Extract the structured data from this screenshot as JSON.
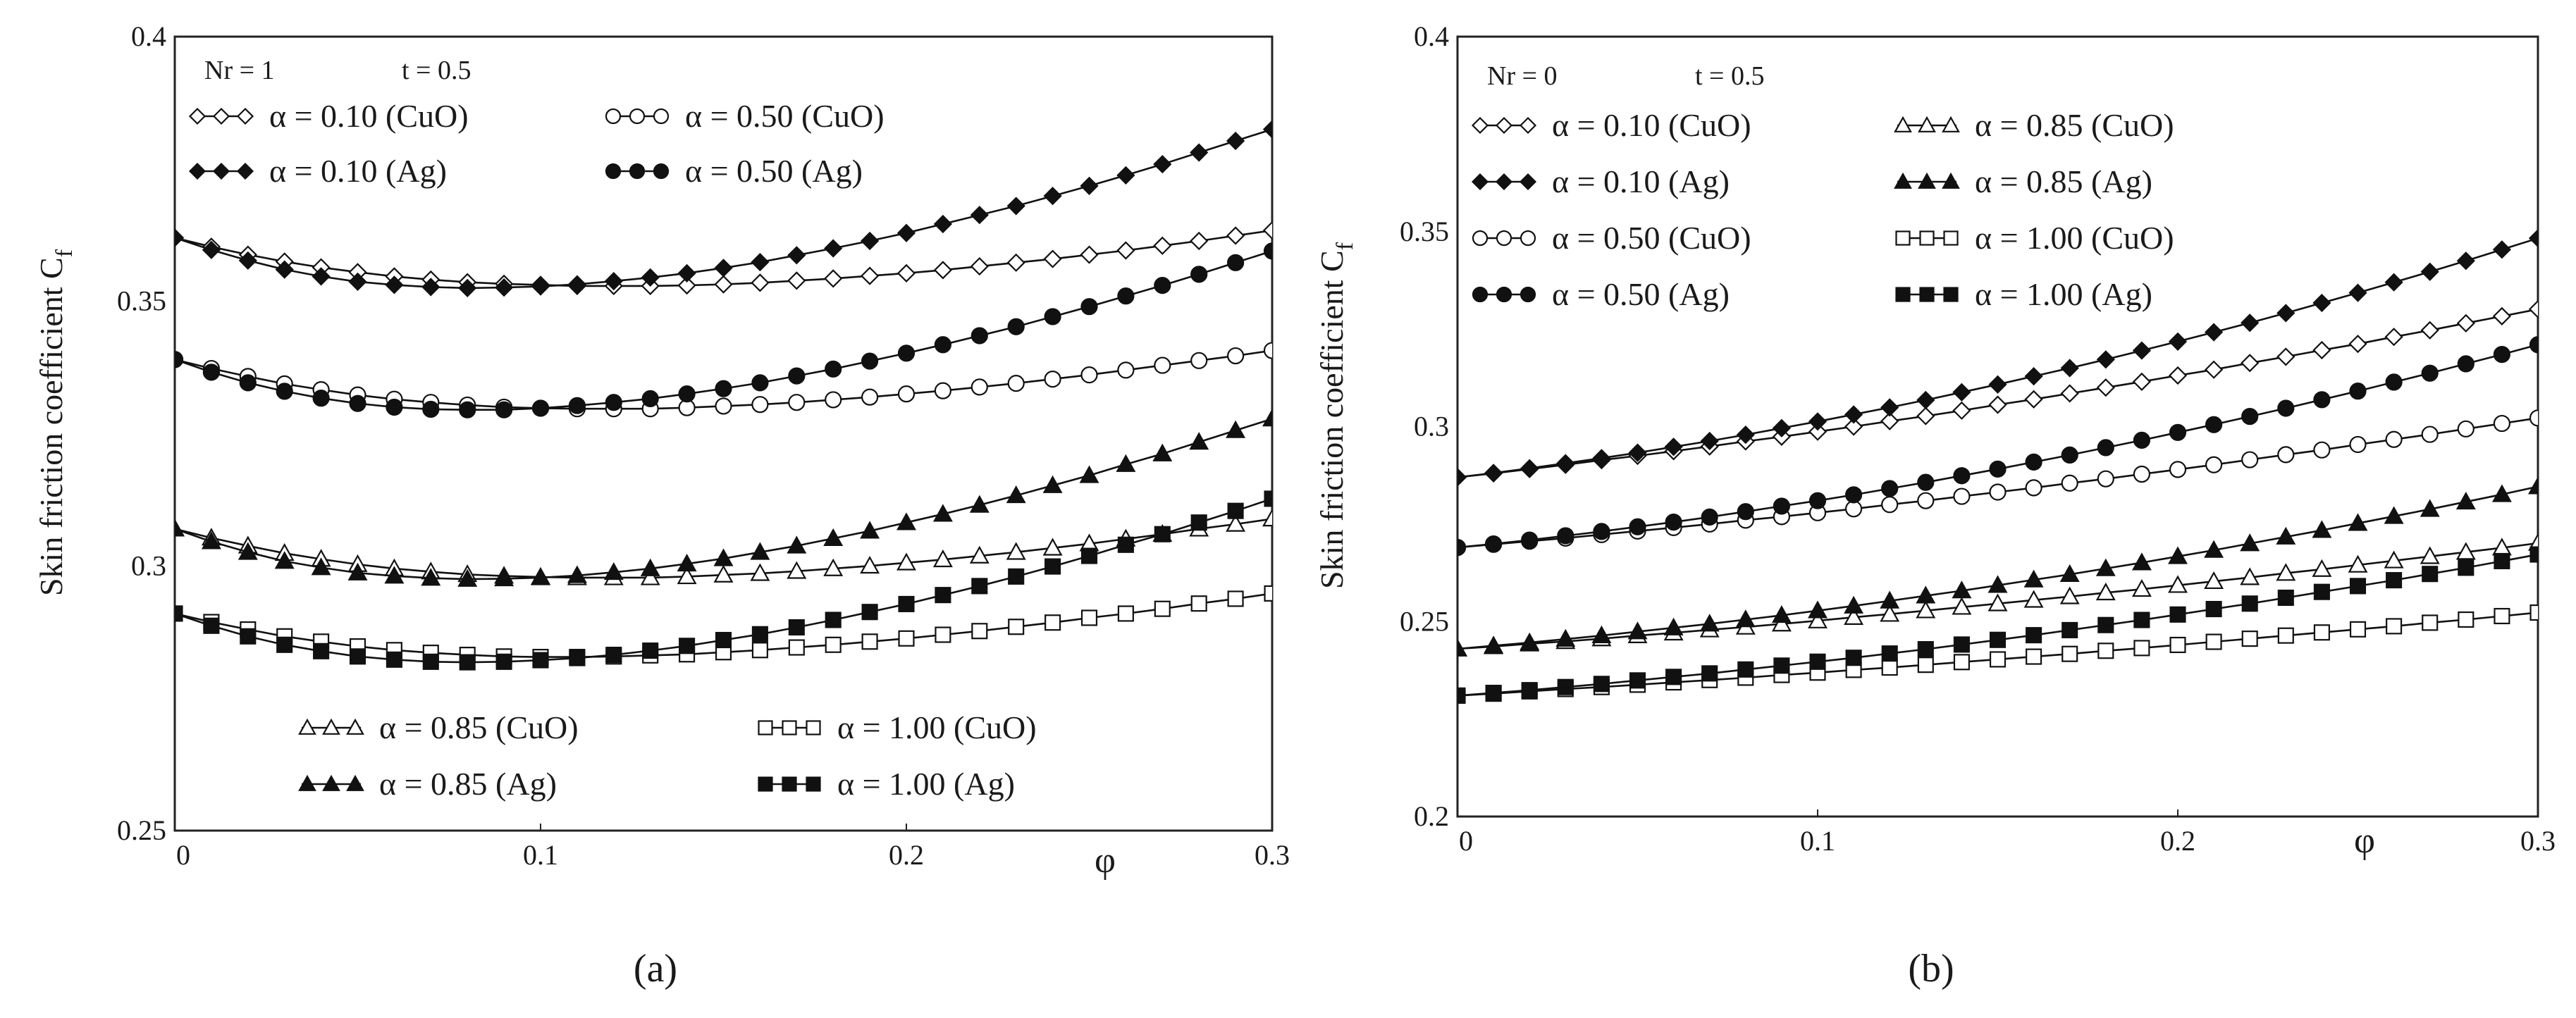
{
  "figure": {
    "panels": [
      "(a)",
      "(b)"
    ]
  },
  "chart_data": [
    {
      "type": "line",
      "caption": "(a)",
      "header": {
        "nr": "Nr = 1",
        "t": "t = 0.5"
      },
      "xlabel": "φ",
      "ylabel": "Skin friction coefficient C",
      "ylabel_sub": "f",
      "xlim": [
        0,
        0.3
      ],
      "ylim": [
        0.25,
        0.4
      ],
      "xticks": [
        "0",
        "0.1",
        "0.2",
        "0.3"
      ],
      "yticks": [
        "0.25",
        "0.3",
        "0.35",
        "0.4"
      ],
      "x": [
        0,
        0.01,
        0.02,
        0.03,
        0.04,
        0.05,
        0.06,
        0.07,
        0.08,
        0.09,
        0.1,
        0.11,
        0.12,
        0.13,
        0.14,
        0.15,
        0.16,
        0.17,
        0.18,
        0.19,
        0.2,
        0.21,
        0.22,
        0.23,
        0.24,
        0.25,
        0.26,
        0.27,
        0.28,
        0.29,
        0.3
      ],
      "series": [
        {
          "name": "α = 0.10 (CuO)",
          "marker": "diamond-open",
          "values": [
            0.362,
            0.3603,
            0.3588,
            0.3575,
            0.3564,
            0.3555,
            0.3547,
            0.3541,
            0.3536,
            0.3533,
            0.3531,
            0.3529,
            0.3529,
            0.3529,
            0.353,
            0.3532,
            0.3535,
            0.3539,
            0.3543,
            0.3548,
            0.3553,
            0.3559,
            0.3566,
            0.3573,
            0.358,
            0.3588,
            0.3596,
            0.3605,
            0.3614,
            0.3624,
            0.3634
          ]
        },
        {
          "name": "α = 0.10 (Ag)",
          "marker": "diamond-filled",
          "values": [
            0.362,
            0.3597,
            0.3577,
            0.356,
            0.3547,
            0.3537,
            0.3531,
            0.3527,
            0.3525,
            0.3526,
            0.3528,
            0.3532,
            0.3538,
            0.3545,
            0.3553,
            0.3563,
            0.3574,
            0.3587,
            0.36,
            0.3614,
            0.3629,
            0.3646,
            0.3663,
            0.368,
            0.3699,
            0.3718,
            0.3738,
            0.3759,
            0.3781,
            0.3803,
            0.3825
          ]
        },
        {
          "name": "α = 0.50 (CuO)",
          "marker": "circle-open",
          "values": [
            0.339,
            0.3373,
            0.3358,
            0.3344,
            0.3333,
            0.3323,
            0.3315,
            0.3309,
            0.3304,
            0.33,
            0.3298,
            0.3297,
            0.3297,
            0.3297,
            0.3299,
            0.3302,
            0.3305,
            0.3309,
            0.3314,
            0.3319,
            0.3325,
            0.3331,
            0.3338,
            0.3345,
            0.3353,
            0.3361,
            0.337,
            0.3379,
            0.3388,
            0.3397,
            0.3407
          ]
        },
        {
          "name": "α = 0.50 (Ag)",
          "marker": "circle-filled",
          "values": [
            0.339,
            0.3366,
            0.3346,
            0.333,
            0.3317,
            0.3307,
            0.33,
            0.3296,
            0.3295,
            0.3295,
            0.3298,
            0.3303,
            0.3309,
            0.3316,
            0.3325,
            0.3335,
            0.3346,
            0.3359,
            0.3372,
            0.3387,
            0.3402,
            0.3418,
            0.3435,
            0.3452,
            0.3471,
            0.349,
            0.351,
            0.353,
            0.3551,
            0.3573,
            0.3595
          ]
        },
        {
          "name": "α = 0.85 (CuO)",
          "marker": "triangle-open",
          "values": [
            0.307,
            0.3053,
            0.3038,
            0.3024,
            0.3013,
            0.3003,
            0.2995,
            0.2989,
            0.2984,
            0.2981,
            0.2979,
            0.2978,
            0.2978,
            0.2978,
            0.298,
            0.2983,
            0.2986,
            0.299,
            0.2995,
            0.3,
            0.3006,
            0.3012,
            0.3019,
            0.3026,
            0.3034,
            0.3042,
            0.3051,
            0.306,
            0.307,
            0.3079,
            0.3089
          ]
        },
        {
          "name": "α = 0.85 (Ag)",
          "marker": "triangle-filled",
          "values": [
            0.307,
            0.3046,
            0.3026,
            0.3009,
            0.2997,
            0.2987,
            0.2981,
            0.2977,
            0.2975,
            0.2976,
            0.2978,
            0.2982,
            0.2988,
            0.2995,
            0.3004,
            0.3014,
            0.3026,
            0.3038,
            0.3052,
            0.3066,
            0.3082,
            0.3098,
            0.3115,
            0.3133,
            0.3152,
            0.3171,
            0.3192,
            0.3212,
            0.3234,
            0.3256,
            0.3278
          ]
        },
        {
          "name": "α = 1.00 (CuO)",
          "marker": "square-open",
          "values": [
            0.291,
            0.2894,
            0.288,
            0.2867,
            0.2857,
            0.2848,
            0.2841,
            0.2836,
            0.2832,
            0.2829,
            0.2828,
            0.2828,
            0.2829,
            0.2831,
            0.2833,
            0.2837,
            0.2841,
            0.2846,
            0.2851,
            0.2857,
            0.2863,
            0.287,
            0.2877,
            0.2885,
            0.2893,
            0.2902,
            0.291,
            0.2919,
            0.2929,
            0.2938,
            0.2948
          ]
        },
        {
          "name": "α = 1.00 (Ag)",
          "marker": "square-filled",
          "values": [
            0.291,
            0.2887,
            0.2867,
            0.2851,
            0.2839,
            0.2829,
            0.2823,
            0.2819,
            0.2818,
            0.2819,
            0.2822,
            0.2826,
            0.2832,
            0.284,
            0.2849,
            0.286,
            0.2871,
            0.2884,
            0.2898,
            0.2913,
            0.2928,
            0.2945,
            0.2962,
            0.298,
            0.2999,
            0.3019,
            0.304,
            0.306,
            0.3082,
            0.3104,
            0.3127
          ]
        }
      ],
      "legend_groups": [
        {
          "position": "top-left",
          "columns": 2,
          "items": [
            0,
            2,
            1,
            3
          ]
        },
        {
          "position": "bottom-center",
          "columns": 2,
          "items": [
            4,
            6,
            5,
            7
          ]
        }
      ]
    },
    {
      "type": "line",
      "caption": "(b)",
      "header": {
        "nr": "Nr = 0",
        "t": "t = 0.5"
      },
      "xlabel": "φ",
      "ylabel": "Skin friction coefficient C",
      "ylabel_sub": "f",
      "xlim": [
        0,
        0.3
      ],
      "ylim": [
        0.2,
        0.4
      ],
      "xticks": [
        "0",
        "0.1",
        "0.2",
        "0.3"
      ],
      "yticks": [
        "0.2",
        "0.25",
        "0.3",
        "0.35",
        "0.4"
      ],
      "x": [
        0,
        0.01,
        0.02,
        0.03,
        0.04,
        0.05,
        0.06,
        0.07,
        0.08,
        0.09,
        0.1,
        0.11,
        0.12,
        0.13,
        0.14,
        0.15,
        0.16,
        0.17,
        0.18,
        0.19,
        0.2,
        0.21,
        0.22,
        0.23,
        0.24,
        0.25,
        0.26,
        0.27,
        0.28,
        0.29,
        0.3
      ],
      "series": [
        {
          "name": "α = 0.10 (CuO)",
          "marker": "diamond-open",
          "values": [
            0.287,
            0.288,
            0.2891,
            0.2902,
            0.2914,
            0.2925,
            0.2937,
            0.2949,
            0.2962,
            0.2974,
            0.2987,
            0.3,
            0.3014,
            0.3027,
            0.3041,
            0.3056,
            0.307,
            0.3085,
            0.31,
            0.3115,
            0.3131,
            0.3146,
            0.3163,
            0.3179,
            0.3196,
            0.3212,
            0.323,
            0.3247,
            0.3265,
            0.3283,
            0.3301
          ]
        },
        {
          "name": "α = 0.10 (Ag)",
          "marker": "diamond-filled",
          "values": [
            0.287,
            0.2881,
            0.2893,
            0.2906,
            0.2919,
            0.2933,
            0.2948,
            0.2963,
            0.2979,
            0.2996,
            0.3013,
            0.3031,
            0.3049,
            0.3068,
            0.3088,
            0.3108,
            0.3129,
            0.315,
            0.3172,
            0.3195,
            0.3218,
            0.3242,
            0.3266,
            0.3291,
            0.3317,
            0.3343,
            0.337,
            0.3397,
            0.3425,
            0.3454,
            0.3483
          ]
        },
        {
          "name": "α = 0.50 (CuO)",
          "marker": "circle-open",
          "values": [
            0.269,
            0.2698,
            0.2706,
            0.2714,
            0.2723,
            0.2732,
            0.2741,
            0.275,
            0.276,
            0.2769,
            0.2779,
            0.2789,
            0.28,
            0.281,
            0.2821,
            0.2832,
            0.2843,
            0.2855,
            0.2866,
            0.2878,
            0.289,
            0.2902,
            0.2915,
            0.2928,
            0.294,
            0.2954,
            0.2967,
            0.298,
            0.2994,
            0.3008,
            0.3022
          ]
        },
        {
          "name": "α = 0.50 (Ag)",
          "marker": "circle-filled",
          "values": [
            0.269,
            0.2699,
            0.2709,
            0.272,
            0.2731,
            0.2743,
            0.2755,
            0.2768,
            0.2782,
            0.2796,
            0.281,
            0.2825,
            0.2841,
            0.2857,
            0.2874,
            0.2891,
            0.2909,
            0.2927,
            0.2946,
            0.2965,
            0.2985,
            0.3005,
            0.3026,
            0.3047,
            0.3069,
            0.3091,
            0.3114,
            0.3137,
            0.3161,
            0.3185,
            0.321
          ]
        },
        {
          "name": "α = 0.85 (CuO)",
          "marker": "triangle-open",
          "values": [
            0.243,
            0.2436,
            0.2443,
            0.2449,
            0.2456,
            0.2464,
            0.2471,
            0.2479,
            0.2486,
            0.2494,
            0.2502,
            0.2511,
            0.2519,
            0.2528,
            0.2537,
            0.2546,
            0.2555,
            0.2564,
            0.2574,
            0.2583,
            0.2593,
            0.2603,
            0.2613,
            0.2624,
            0.2634,
            0.2645,
            0.2656,
            0.2667,
            0.2678,
            0.2689,
            0.2701
          ]
        },
        {
          "name": "α = 0.85 (Ag)",
          "marker": "triangle-filled",
          "values": [
            0.243,
            0.2438,
            0.2446,
            0.2455,
            0.2464,
            0.2474,
            0.2484,
            0.2494,
            0.2505,
            0.2516,
            0.2528,
            0.254,
            0.2553,
            0.2566,
            0.2579,
            0.2593,
            0.2607,
            0.2621,
            0.2636,
            0.2651,
            0.2667,
            0.2683,
            0.27,
            0.2717,
            0.2734,
            0.2752,
            0.277,
            0.2788,
            0.2807,
            0.2826,
            0.2846
          ]
        },
        {
          "name": "α = 1.00 (CuO)",
          "marker": "square-open",
          "values": [
            0.231,
            0.2315,
            0.2321,
            0.2327,
            0.2332,
            0.2338,
            0.2344,
            0.235,
            0.2356,
            0.2363,
            0.2369,
            0.2376,
            0.2382,
            0.2389,
            0.2396,
            0.2403,
            0.241,
            0.2417,
            0.2425,
            0.2432,
            0.244,
            0.2448,
            0.2456,
            0.2464,
            0.2472,
            0.248,
            0.2488,
            0.2497,
            0.2505,
            0.2514,
            0.2523
          ]
        },
        {
          "name": "α = 1.00 (Ag)",
          "marker": "square-filled",
          "values": [
            0.231,
            0.2317,
            0.2324,
            0.2332,
            0.234,
            0.2349,
            0.2358,
            0.2367,
            0.2377,
            0.2387,
            0.2397,
            0.2407,
            0.2418,
            0.2429,
            0.2441,
            0.2453,
            0.2465,
            0.2478,
            0.2491,
            0.2504,
            0.2518,
            0.2532,
            0.2546,
            0.2561,
            0.2576,
            0.2591,
            0.2606,
            0.2622,
            0.2638,
            0.2655,
            0.2672
          ]
        }
      ],
      "legend_groups": [
        {
          "position": "top-left",
          "columns": 2,
          "items": [
            0,
            4,
            1,
            5,
            2,
            6,
            3,
            7
          ]
        }
      ]
    }
  ]
}
